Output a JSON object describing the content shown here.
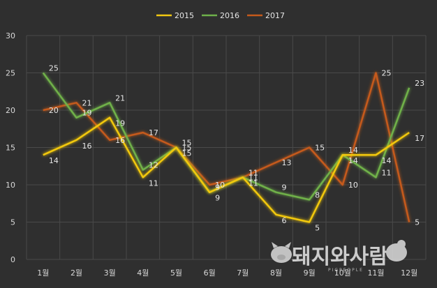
{
  "chart_data": {
    "type": "line",
    "categories": [
      "1월",
      "2월",
      "3월",
      "4월",
      "5월",
      "6월",
      "7월",
      "8월",
      "9월",
      "10월",
      "11월",
      "12월"
    ],
    "series": [
      {
        "name": "2015",
        "color": "#f2c811",
        "values": [
          14,
          16,
          19,
          11,
          15,
          9,
          11,
          6,
          5,
          14,
          14,
          17
        ]
      },
      {
        "name": "2016",
        "color": "#6fb14a",
        "values": [
          25,
          19,
          21,
          12,
          15,
          9,
          11,
          9,
          8,
          14,
          11,
          23
        ]
      },
      {
        "name": "2017",
        "color": "#c55a1b",
        "values": [
          20,
          21,
          16,
          17,
          15,
          10,
          11,
          13,
          15,
          10,
          25,
          5
        ]
      }
    ],
    "yTicks": [
      "0",
      "5",
      "10",
      "15",
      "20",
      "25",
      "30"
    ],
    "ylim": [
      0,
      30
    ],
    "grid": true,
    "legend_position": "top-center",
    "title": "",
    "xlabel": "",
    "ylabel": ""
  },
  "watermark": {
    "main": "돼지와사람",
    "sub": "PIGPEOPLE"
  }
}
